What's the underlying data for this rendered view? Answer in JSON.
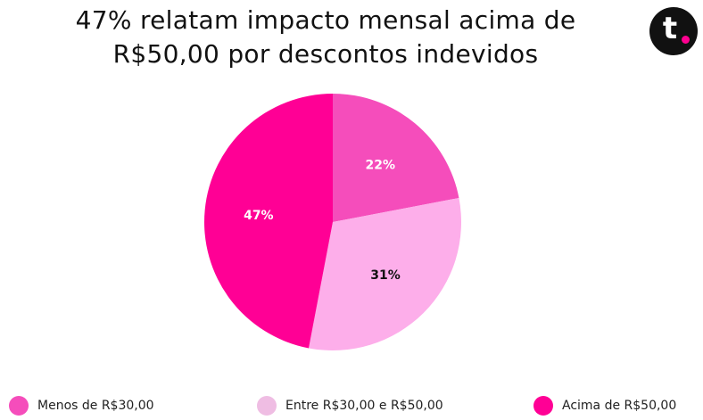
{
  "header": {
    "title_line1": "47% relatam impacto mensal acima de",
    "title_line2": "R$50,00 por descontos indevidos"
  },
  "logo": {
    "letter": "t",
    "icon": "brand-t-logo",
    "bg_color": "#111111",
    "dot_color": "#ff0090"
  },
  "chart_data": {
    "type": "pie",
    "title": "47% relatam impacto mensal acima de R$50,00 por descontos indevidos",
    "slices": [
      {
        "label": "Menos de R$30,00",
        "value": 22,
        "display": "22%",
        "color": "#f54dbb",
        "label_color": "#ffffff"
      },
      {
        "label": "Entre R$30,00 e R$50,00",
        "value": 31,
        "display": "31%",
        "color": "#fdaeea",
        "label_color": "#111111"
      },
      {
        "label": "Acima de R$50,00",
        "value": 47,
        "display": "47%",
        "color": "#ff0095",
        "label_color": "#ffffff"
      }
    ],
    "start": "12 o'clock",
    "direction": "clockwise",
    "legend_position": "bottom"
  },
  "legend": {
    "items": [
      {
        "label": "Menos de R$30,00",
        "color": "#f54dbb"
      },
      {
        "label": "Entre R$30,00 e R$50,00",
        "color": "#efbde3"
      },
      {
        "label": "Acima de R$50,00",
        "color": "#ff0095"
      }
    ]
  }
}
